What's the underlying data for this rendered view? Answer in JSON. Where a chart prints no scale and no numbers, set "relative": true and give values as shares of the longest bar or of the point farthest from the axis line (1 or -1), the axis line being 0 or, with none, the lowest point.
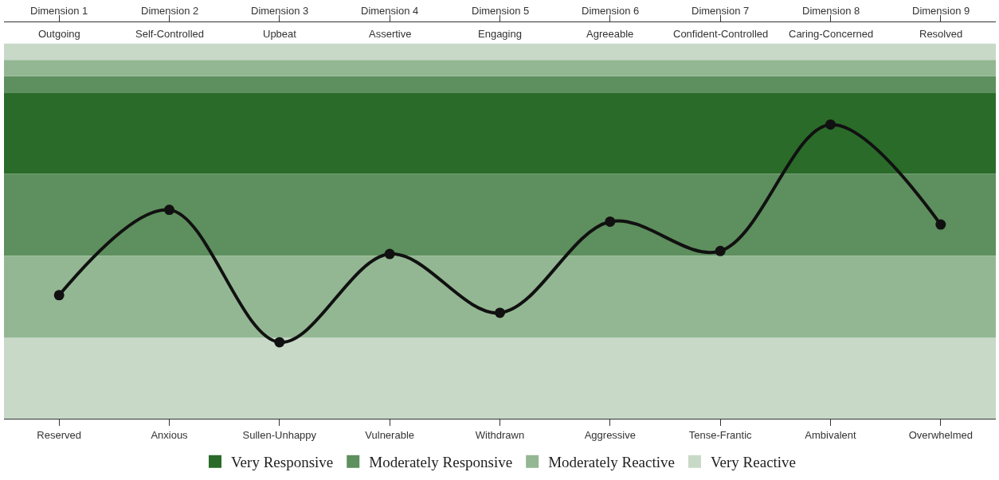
{
  "chart_data": {
    "type": "line",
    "relative": true,
    "categories": [
      "Reserved",
      "Anxious",
      "Sullen-Unhappy",
      "Vulnerable",
      "Withdrawn",
      "Aggressive",
      "Tense-Frantic",
      "Ambivalent",
      "Overwhelmed"
    ],
    "annotations": [
      "Dimension 1",
      "Dimension 2",
      "Dimension 3",
      "Dimension 4",
      "Dimension 5",
      "Dimension 6",
      "Dimension 7",
      "Dimension 8",
      "Dimension 9",
      "Outgoing",
      "Self-Controlled",
      "Upbeat",
      "Assertive",
      "Engaging",
      "Agreeable",
      "Confident-Controlled",
      "Caring-Concerned",
      "Resolved"
    ],
    "series": [
      {
        "color": "#111111",
        "values": [
          0.42,
          0.71,
          0.26,
          0.56,
          0.36,
          0.67,
          0.57,
          1.0,
          0.66
        ]
      }
    ],
    "bands": [
      {
        "axis": "y",
        "from": 0.833,
        "to": 1.109,
        "label": "Very Responsive",
        "color": "#2a6b2a"
      },
      {
        "axis": "y",
        "from": 0.554,
        "to": 0.833,
        "label": "Moderately Responsive",
        "color": "#5e8f5e"
      },
      {
        "axis": "y",
        "from": 1.109,
        "to": 1.164,
        "color": "#5e8f5e"
      },
      {
        "axis": "y",
        "from": 0.276,
        "to": 0.554,
        "label": "Moderately Reactive",
        "color": "#93b793"
      },
      {
        "axis": "y",
        "from": 1.164,
        "to": 1.22,
        "color": "#93b793"
      },
      {
        "axis": "y",
        "from": 0.0,
        "to": 0.276,
        "label": "Very Reactive",
        "color": "#c8d9c8"
      },
      {
        "axis": "y",
        "from": 1.22,
        "to": 1.276,
        "color": "#c8d9c8"
      }
    ],
    "marker": "circle",
    "line_style": "solid",
    "grid": false,
    "legend": "bottom"
  }
}
